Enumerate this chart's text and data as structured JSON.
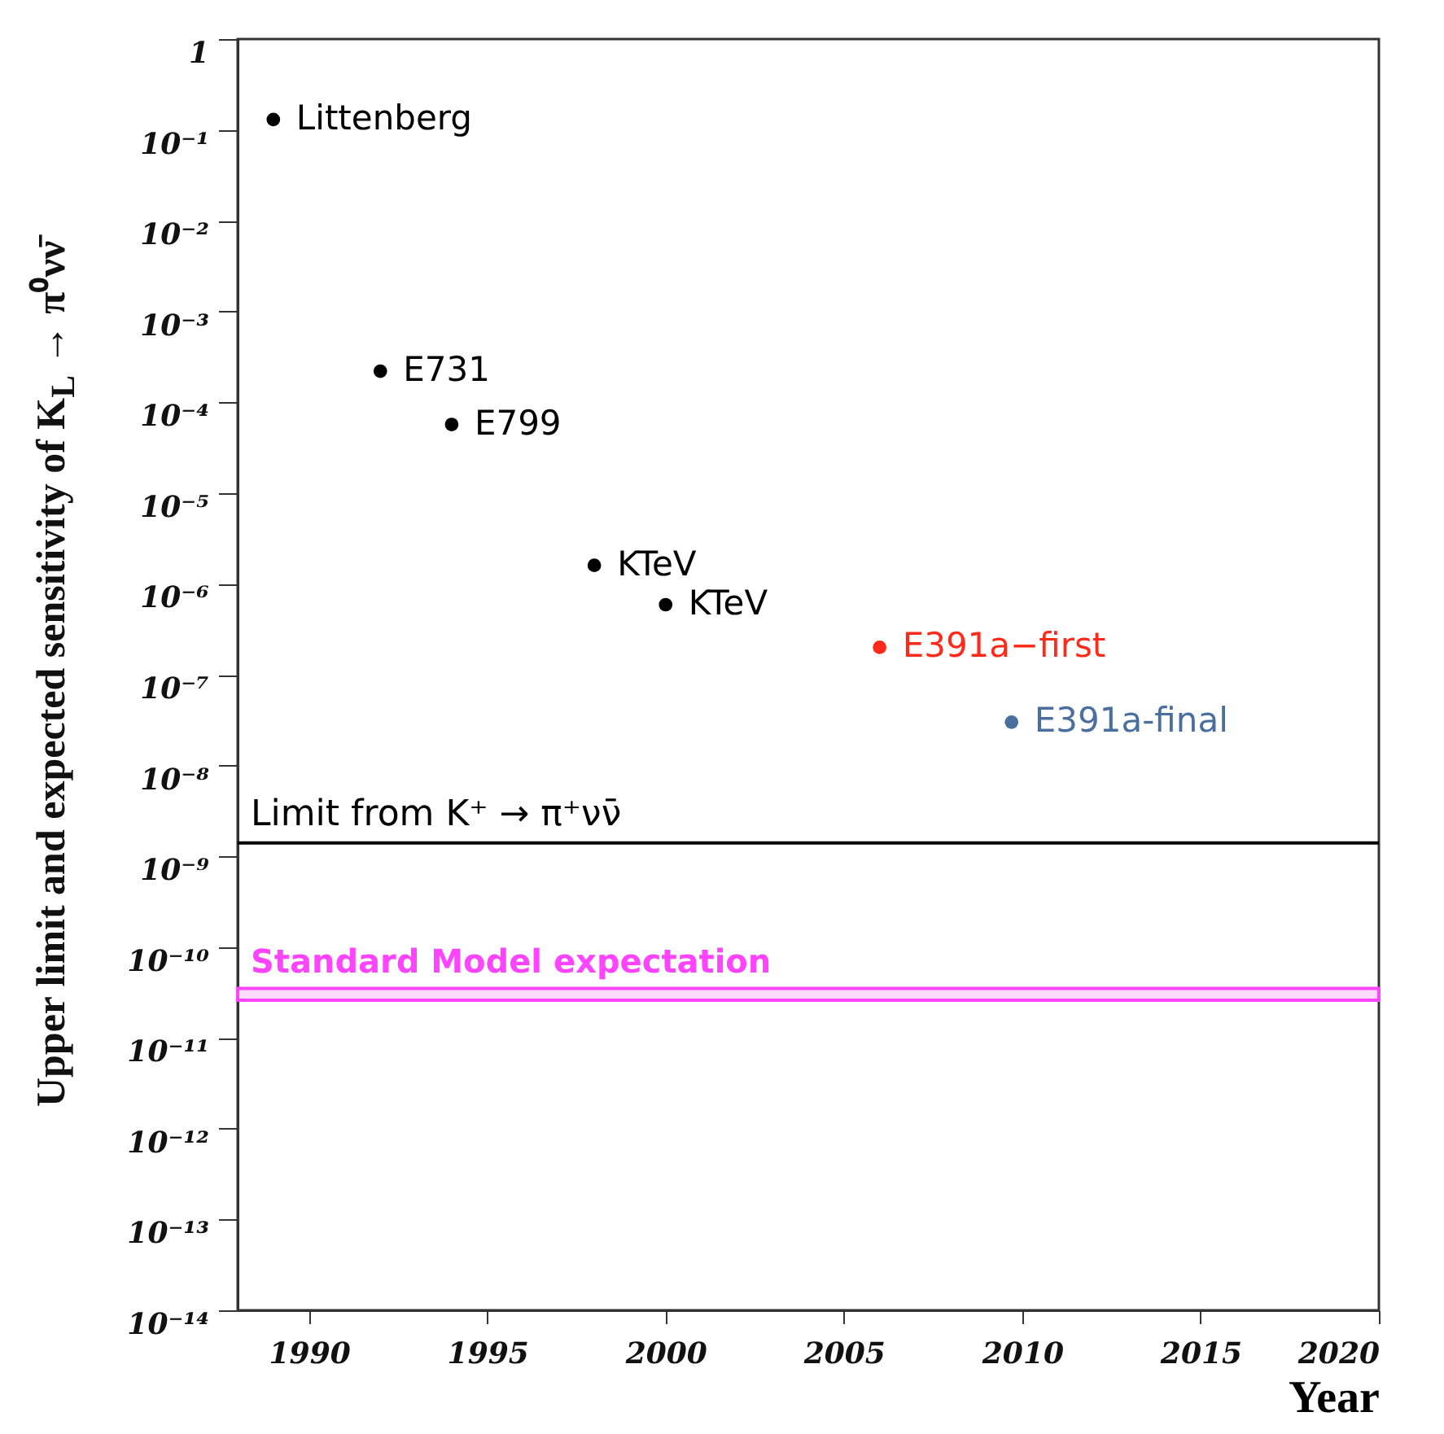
{
  "chart_data": {
    "type": "scatter",
    "xlabel": "Year",
    "ylabel": "Upper limit and expected sensitivity of K$_{L}$ → π⁰νν̄",
    "log": "y",
    "marker": "circle",
    "xlim": [
      1988,
      2020
    ],
    "xticks": [
      1990,
      1995,
      2000,
      2005,
      2010,
      2015,
      2020
    ],
    "ylim": [
      1e-14,
      1
    ],
    "yticks": [
      {
        "value": 1e-14,
        "label": "10⁻¹⁴"
      },
      {
        "value": 1e-13,
        "label": "10⁻¹³"
      },
      {
        "value": 1e-12,
        "label": "10⁻¹²"
      },
      {
        "value": 1e-11,
        "label": "10⁻¹¹"
      },
      {
        "value": 1e-10,
        "label": "10⁻¹⁰"
      },
      {
        "value": 1e-09,
        "label": "10⁻⁹"
      },
      {
        "value": 1e-08,
        "label": "10⁻⁸"
      },
      {
        "value": 1e-07,
        "label": "10⁻⁷"
      },
      {
        "value": 1e-06,
        "label": "10⁻⁶"
      },
      {
        "value": 1e-05,
        "label": "10⁻⁵"
      },
      {
        "value": 0.0001,
        "label": "10⁻⁴"
      },
      {
        "value": 0.001,
        "label": "10⁻³"
      },
      {
        "value": 0.01,
        "label": "10⁻²"
      },
      {
        "value": 0.1,
        "label": "10⁻¹"
      },
      1
    ],
    "series": [
      {
        "color": "#000000",
        "x": [
          1989,
          1992,
          1994,
          1998,
          2000
        ],
        "values": [
          0.13,
          0.00022,
          5.7e-05,
          1.6e-06,
          5.9e-07
        ]
      },
      {
        "color": "#ff2a1a",
        "x": [
          2006
        ],
        "values": [
          2e-07
        ]
      },
      {
        "color": "#4a6f9f",
        "x": [
          2009.7
        ],
        "values": [
          3e-08
        ]
      }
    ],
    "annotations": [
      {
        "text": "Littenberg",
        "x": 1989,
        "y": 0.13
      },
      {
        "text": "E731",
        "x": 1992,
        "y": 0.00022
      },
      {
        "text": "E799",
        "x": 1994,
        "y": 5.7e-05
      },
      {
        "text": "KTeV",
        "x": 1998,
        "y": 1.6e-06
      },
      {
        "text": "KTeV",
        "x": 2000,
        "y": 5.9e-07
      },
      {
        "text": "E391a−first",
        "x": 2006,
        "y": 2e-07
      },
      {
        "text": "E391a-final",
        "x": 2009.7,
        "y": 3e-08
      }
    ],
    "ref_lines": [
      {
        "axis": "y",
        "value": 1.4e-09,
        "label": "Limit from K⁺ → π⁺νν̄",
        "color": "#000000"
      }
    ],
    "bands": [
      {
        "axis": "y",
        "from": 2.6e-11,
        "to": 3.5e-11,
        "label": "Standard Model expectation",
        "color": "#ff44ff"
      }
    ]
  }
}
